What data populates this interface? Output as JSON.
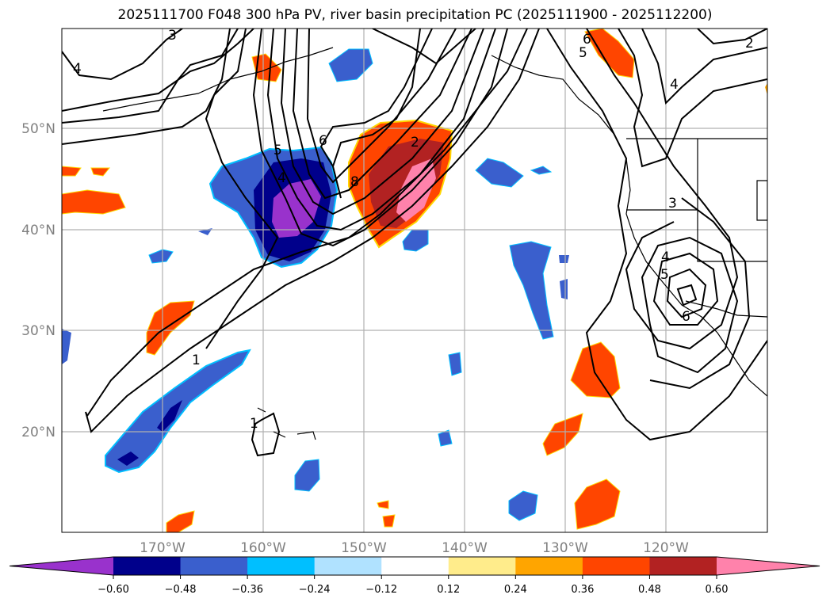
{
  "title": "2025111700 F048 300 hPa PV, river basin precipitation PC (2025111900 - 2025112200)",
  "map": {
    "lon_labels": [
      "170°W",
      "160°W",
      "150°W",
      "140°W",
      "130°W",
      "120°W"
    ],
    "lat_labels": [
      "50°N",
      "40°N",
      "30°N",
      "20°N"
    ],
    "contour_labels": [
      "3",
      "4",
      "1",
      "1",
      "5",
      "4",
      "6",
      "8",
      "2",
      "6",
      "5",
      "4",
      "2",
      "3",
      "4",
      "5",
      "6"
    ]
  },
  "colorbar": {
    "colors": [
      "#9932cc",
      "#00008b",
      "#3a5fcd",
      "#00bfff",
      "#b0e2ff",
      "#ffffff",
      "#ffec8b",
      "#ffa500",
      "#ff4500",
      "#b22222",
      "#ff82ab"
    ],
    "ticks": [
      "−0.60",
      "−0.48",
      "−0.36",
      "−0.24",
      "−0.12",
      "0.12",
      "0.24",
      "0.36",
      "0.48",
      "0.60"
    ]
  }
}
